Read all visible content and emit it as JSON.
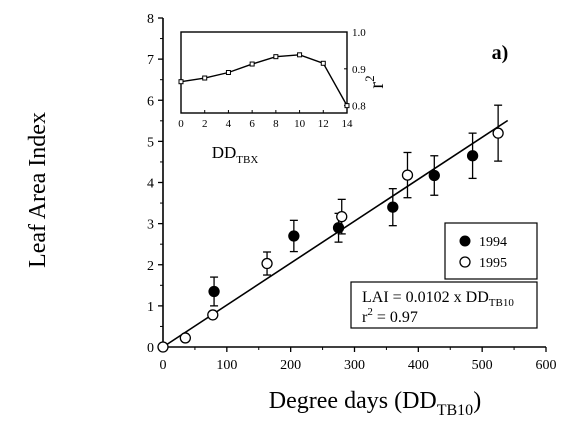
{
  "chart_data": {
    "type": "scatter",
    "panel_label": "a)",
    "xlabel": "Degree days (DD",
    "xlabel_sub": "TB10",
    "xlabel_close": ")",
    "ylabel": "Leaf Area Index",
    "xlim": [
      0,
      600
    ],
    "ylim": [
      0,
      8
    ],
    "x_ticks": [
      "0",
      "100",
      "200",
      "300",
      "400",
      "500",
      "600"
    ],
    "y_ticks": [
      "0",
      "1",
      "2",
      "3",
      "4",
      "5",
      "6",
      "7",
      "8"
    ],
    "grid": false,
    "legend": {
      "placement": "right",
      "entries": [
        {
          "label": "1994",
          "marker": "filled-circle"
        },
        {
          "label": "1995",
          "marker": "open-circle"
        }
      ]
    },
    "series": [
      {
        "name": "1994",
        "marker": "filled",
        "points": [
          {
            "x": 80,
            "y": 1.35,
            "err": 0.35
          },
          {
            "x": 205,
            "y": 2.7,
            "err": 0.38
          },
          {
            "x": 275,
            "y": 2.9,
            "err": 0.35
          },
          {
            "x": 360,
            "y": 3.4,
            "err": 0.45
          },
          {
            "x": 425,
            "y": 4.17,
            "err": 0.48
          },
          {
            "x": 485,
            "y": 4.65,
            "err": 0.55
          }
        ]
      },
      {
        "name": "1995",
        "marker": "open",
        "points": [
          {
            "x": 0,
            "y": 0.0,
            "err": 0
          },
          {
            "x": 35,
            "y": 0.22,
            "err": 0
          },
          {
            "x": 78,
            "y": 0.78,
            "err": 0
          },
          {
            "x": 163,
            "y": 2.03,
            "err": 0.28
          },
          {
            "x": 280,
            "y": 3.17,
            "err": 0.42
          },
          {
            "x": 383,
            "y": 4.18,
            "err": 0.55
          },
          {
            "x": 525,
            "y": 5.2,
            "err": 0.68
          }
        ]
      }
    ],
    "fit_line": {
      "slope": 0.0102,
      "x_range": [
        0,
        540
      ]
    },
    "equation": {
      "line1": "LAI = 0.0102 x DD",
      "line1_sub": "TB10",
      "line2_r": "r",
      "line2_sup": "2",
      "line2_rest": " = 0.97"
    },
    "inset": {
      "type": "line",
      "xlabel": "DD",
      "xlabel_sub": "TBX",
      "ylabel": "r",
      "ylabel_sup": "2",
      "xlim": [
        0,
        14
      ],
      "ylim": [
        0.78,
        1.0
      ],
      "x_ticks": [
        "0",
        "2",
        "4",
        "6",
        "8",
        "10",
        "12",
        "14"
      ],
      "y_ticks": [
        "0.8",
        "0.9",
        "1.0"
      ],
      "x": [
        0,
        2,
        4,
        6,
        8,
        10,
        12,
        14
      ],
      "y": [
        0.865,
        0.875,
        0.89,
        0.913,
        0.933,
        0.938,
        0.915,
        0.8
      ]
    }
  }
}
